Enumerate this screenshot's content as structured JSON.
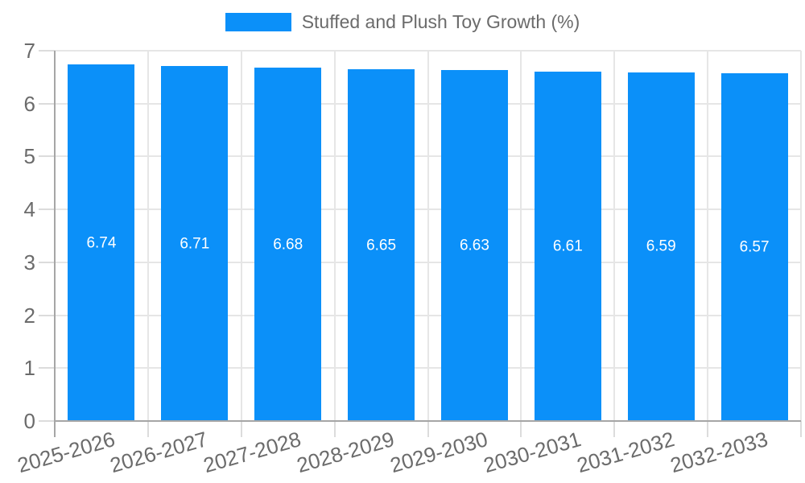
{
  "legend": {
    "label": "Stuffed and Plush Toy Growth (%)"
  },
  "colors": {
    "bar": "#0b90f9",
    "grid": "#e6e6e6",
    "tick": "#dcdcdc",
    "axis": "#a6a6a6",
    "tick_text": "#6b6b6b",
    "legend_text": "#6b6b6b",
    "value_text": "#ffffff",
    "background": "#ffffff"
  },
  "chart_data": {
    "type": "bar",
    "title": "",
    "legend_entries": [
      "Stuffed and Plush Toy Growth (%)"
    ],
    "legend_position": "top",
    "categories": [
      "2025-2026",
      "2026-2027",
      "2027-2028",
      "2028-2029",
      "2029-2030",
      "2030-2031",
      "2031-2032",
      "2032-2033"
    ],
    "values": [
      6.74,
      6.71,
      6.68,
      6.65,
      6.63,
      6.61,
      6.59,
      6.57
    ],
    "value_labels": [
      "6.74",
      "6.71",
      "6.68",
      "6.65",
      "6.63",
      "6.61",
      "6.59",
      "6.57"
    ],
    "xlabel": "",
    "ylabel": "",
    "ylim": [
      0,
      7
    ],
    "yticks": [
      0,
      1,
      2,
      3,
      4,
      5,
      6,
      7
    ],
    "grid": true,
    "x_tick_rotation_deg": -16
  }
}
